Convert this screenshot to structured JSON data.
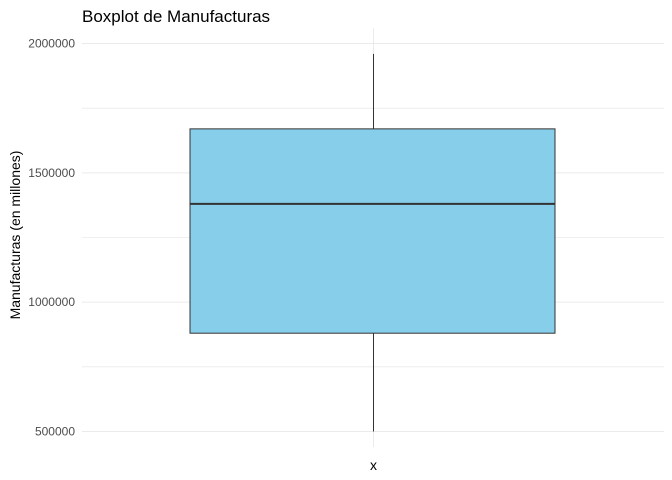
{
  "chart_data": {
    "type": "boxplot",
    "title": "Boxplot de Manufacturas",
    "xlabel": "x",
    "ylabel": "Manufacturas (en millones)",
    "ylim": [
      440000,
      2060000
    ],
    "y_ticks": [
      500000,
      1000000,
      1500000,
      2000000
    ],
    "y_tick_labels": [
      "500000",
      "1000000",
      "1500000",
      "2000000"
    ],
    "grid": true,
    "box": {
      "min": 500000,
      "q1": 880000,
      "median": 1380000,
      "q3": 1670000,
      "max": 1960000,
      "fill": "#87CEEB",
      "stroke": "#333333"
    },
    "grid_color": "#ebebeb"
  }
}
